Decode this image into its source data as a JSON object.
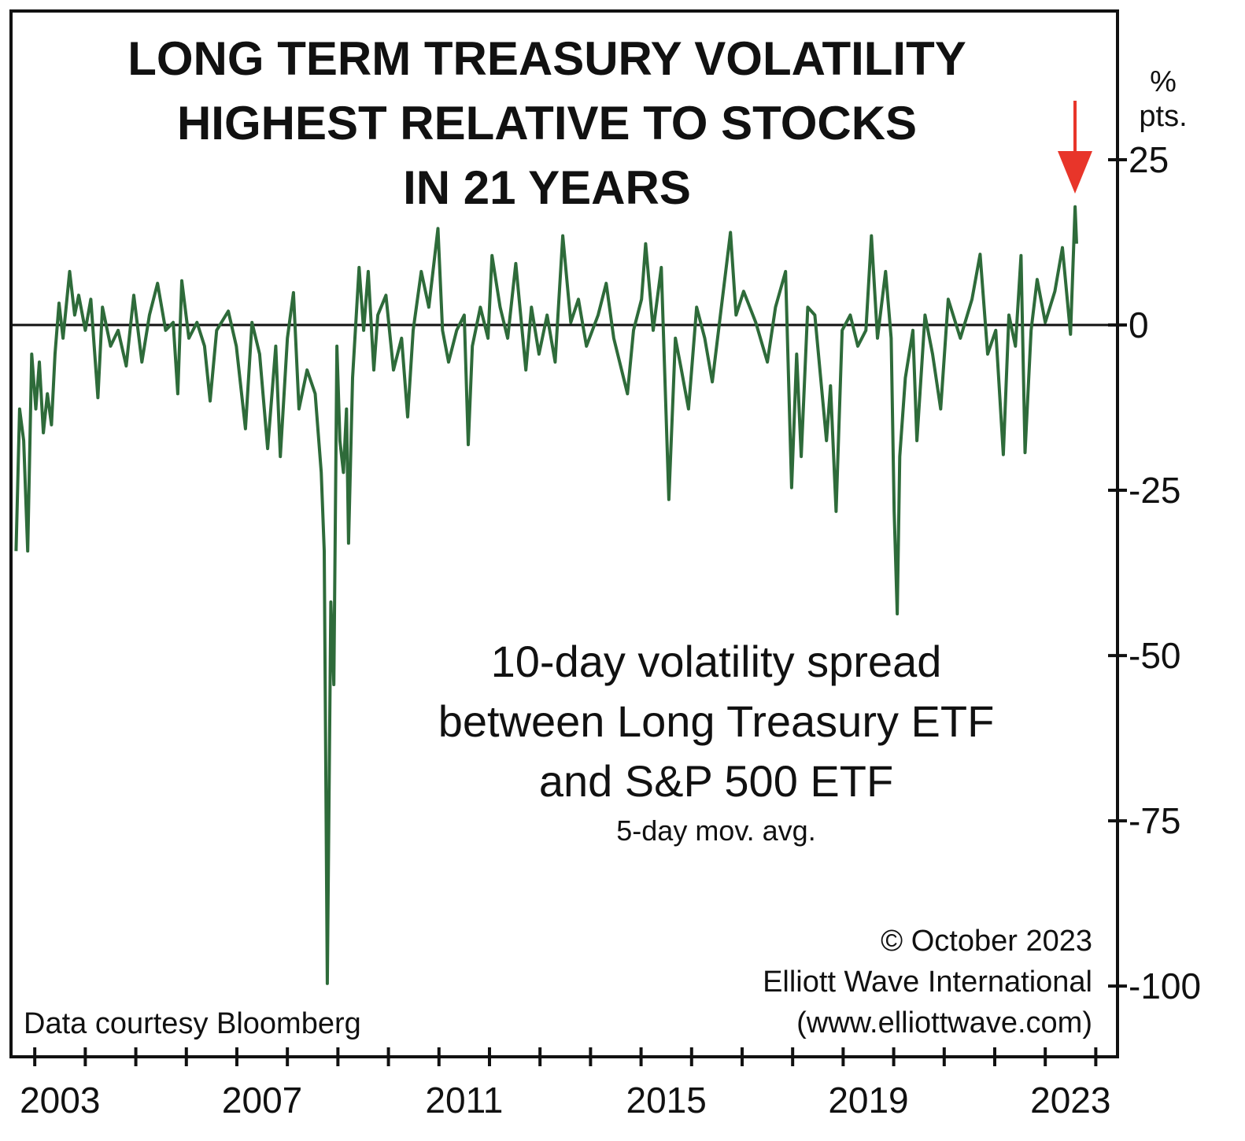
{
  "chart_data": {
    "type": "line",
    "title": [
      "LONG TERM TREASURY VOLATILITY",
      "HIGHEST RELATIVE TO STOCKS",
      "IN 21 YEARS"
    ],
    "annotation": [
      "10-day volatility spread",
      "between Long Treasury ETF",
      "and S&P 500 ETF"
    ],
    "annotation_note": "5-day mov. avg.",
    "y_unit": [
      "%",
      "pts."
    ],
    "source": "Data courtesy Bloomberg",
    "copyright": [
      "© October 2023",
      "Elliott Wave International",
      "(www.elliottwave.com)"
    ],
    "xlim": [
      2002.53,
      2024.43
    ],
    "xticks": [
      2003,
      2007,
      2011,
      2015,
      2019,
      2023
    ],
    "minor_xticks": [
      2003,
      2004,
      2005,
      2006,
      2007,
      2008,
      2009,
      2010,
      2011,
      2012,
      2013,
      2014,
      2015,
      2016,
      2017,
      2018,
      2019,
      2020,
      2021,
      2022,
      2023,
      2024
    ],
    "ylim": [
      -110.7,
      47.5
    ],
    "yticks": [
      25,
      0,
      -25,
      -50,
      -75,
      -100
    ],
    "zero_line": true,
    "x": [
      2002.63,
      2002.7,
      2002.78,
      2002.86,
      2002.94,
      2003.02,
      2003.09,
      2003.17,
      2003.25,
      2003.33,
      2003.4,
      2003.48,
      2003.56,
      2003.69,
      2003.79,
      2003.87,
      2004.0,
      2004.11,
      2004.25,
      2004.34,
      2004.5,
      2004.65,
      2004.81,
      2004.96,
      2005.12,
      2005.27,
      2005.43,
      2005.59,
      2005.74,
      2005.83,
      2005.91,
      2006.05,
      2006.21,
      2006.36,
      2006.47,
      2006.6,
      2006.83,
      2006.99,
      2007.17,
      2007.3,
      2007.45,
      2007.61,
      2007.77,
      2007.86,
      2008.0,
      2008.12,
      2008.23,
      2008.39,
      2008.55,
      2008.67,
      2008.73,
      2008.79,
      2008.86,
      2008.92,
      2008.98,
      2009.04,
      2009.11,
      2009.17,
      2009.21,
      2009.29,
      2009.42,
      2009.51,
      2009.6,
      2009.71,
      2009.79,
      2009.95,
      2010.1,
      2010.26,
      2010.38,
      2010.49,
      2010.65,
      2010.8,
      2010.98,
      2011.07,
      2011.19,
      2011.35,
      2011.5,
      2011.58,
      2011.66,
      2011.82,
      2011.97,
      2012.05,
      2012.21,
      2012.36,
      2012.52,
      2012.72,
      2012.83,
      2012.98,
      2013.14,
      2013.3,
      2013.45,
      2013.61,
      2013.76,
      2013.92,
      2014.15,
      2014.31,
      2014.46,
      2014.73,
      2014.85,
      2015.01,
      2015.09,
      2015.24,
      2015.4,
      2015.55,
      2015.68,
      2015.8,
      2015.94,
      2016.1,
      2016.26,
      2016.41,
      2016.57,
      2016.77,
      2016.88,
      2017.03,
      2017.27,
      2017.5,
      2017.66,
      2017.86,
      2017.98,
      2018.08,
      2018.17,
      2018.3,
      2018.44,
      2018.67,
      2018.75,
      2018.86,
      2018.98,
      2019.14,
      2019.29,
      2019.45,
      2019.56,
      2019.68,
      2019.84,
      2019.95,
      2020.01,
      2020.07,
      2020.12,
      2020.23,
      2020.38,
      2020.46,
      2020.62,
      2020.77,
      2020.93,
      2021.08,
      2021.32,
      2021.55,
      2021.71,
      2021.86,
      2022.02,
      2022.17,
      2022.28,
      2022.41,
      2022.52,
      2022.6,
      2022.72,
      2022.84,
      2023.0,
      2023.19,
      2023.34,
      2023.5,
      2023.59,
      2023.62
    ],
    "series": [
      {
        "color": "#2e6b3a",
        "values": [
          -34.2,
          -12.7,
          -17.5,
          -34.2,
          -4.4,
          -12.7,
          -5.6,
          -16.3,
          -10.4,
          -15.1,
          -4.4,
          3.3,
          -2.0,
          8.1,
          1.5,
          4.5,
          -0.8,
          3.9,
          -11.0,
          2.7,
          -3.2,
          -0.8,
          -6.2,
          4.5,
          -5.6,
          1.5,
          6.3,
          -0.8,
          0.4,
          -10.4,
          6.7,
          -2.0,
          0.4,
          -3.2,
          -11.5,
          -0.8,
          2.1,
          -3.2,
          -15.7,
          0.4,
          -4.4,
          -18.7,
          -3.2,
          -19.9,
          -2.0,
          4.9,
          -12.7,
          -6.8,
          -10.4,
          -22.3,
          -34.2,
          -99.6,
          -41.9,
          -54.4,
          -3.2,
          -17.5,
          -22.3,
          -12.7,
          -33.0,
          -8.0,
          8.7,
          -0.8,
          8.1,
          -6.8,
          1.5,
          4.5,
          -6.8,
          -2.0,
          -13.9,
          -0.8,
          8.1,
          2.7,
          14.6,
          -0.8,
          -5.6,
          -0.8,
          1.5,
          -18.1,
          -3.2,
          2.7,
          -2.0,
          10.5,
          2.7,
          -2.0,
          9.3,
          -6.8,
          2.7,
          -4.4,
          1.5,
          -5.6,
          13.5,
          0.4,
          3.9,
          -3.2,
          1.5,
          6.3,
          -2.0,
          -10.4,
          -0.8,
          3.9,
          12.3,
          -0.8,
          8.7,
          -26.4,
          -2.0,
          -6.8,
          -12.7,
          2.7,
          -2.0,
          -8.6,
          1.5,
          14.0,
          1.5,
          5.1,
          0.4,
          -5.6,
          2.7,
          8.1,
          -24.6,
          -4.4,
          -19.9,
          2.7,
          1.5,
          -17.5,
          -9.2,
          -28.2,
          -0.8,
          1.5,
          -3.2,
          -0.8,
          13.5,
          -2.0,
          8.1,
          -2.0,
          -28.2,
          -43.7,
          -19.9,
          -8.0,
          -0.8,
          -17.5,
          1.5,
          -4.4,
          -12.7,
          3.9,
          -2.0,
          3.9,
          10.7,
          -4.4,
          -0.8,
          -19.6,
          1.5,
          -3.2,
          10.5,
          -19.3,
          -0.8,
          6.9,
          0.4,
          5.1,
          11.7,
          -1.4,
          17.9,
          12.3
        ]
      }
    ]
  }
}
